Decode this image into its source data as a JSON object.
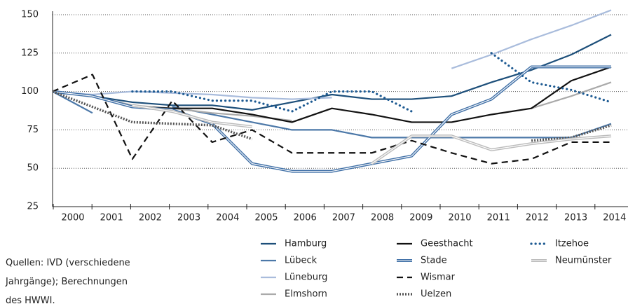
{
  "chart_data": {
    "type": "line",
    "categories": [
      "2000",
      "2001",
      "2002",
      "2003",
      "2004",
      "2005",
      "2006",
      "2007",
      "2008",
      "2009",
      "2010",
      "2011",
      "2012",
      "2013",
      "2014"
    ],
    "ylim": [
      25,
      150
    ],
    "yticks": [
      25,
      50,
      75,
      100,
      125,
      150
    ],
    "grid": true,
    "series": [
      {
        "name": "Hamburg",
        "color": "#1d4f7a",
        "style": "solid",
        "values": [
          100,
          97,
          93,
          91,
          91,
          88,
          93,
          98,
          95,
          95,
          97,
          106,
          114,
          124,
          137
        ]
      },
      {
        "name": "Lübeck",
        "color": "#4c78a8",
        "style": "solid",
        "values": [
          100,
          86,
          null,
          90,
          85,
          80,
          75,
          75,
          70,
          70,
          70,
          70,
          70,
          70,
          79
        ]
      },
      {
        "name": "Lüneburg",
        "color": "#a9bcdc",
        "style": "solid",
        "values": [
          100,
          98,
          100,
          99,
          98,
          96,
          95,
          96,
          null,
          null,
          115,
          124,
          134,
          143,
          153
        ]
      },
      {
        "name": "Elmshorn",
        "color": "#aaaaaa",
        "style": "solid",
        "values": [
          100,
          97,
          91,
          89,
          86,
          84,
          81,
          null,
          null,
          null,
          null,
          null,
          89,
          97,
          106
        ]
      },
      {
        "name": "Geesthacht",
        "color": "#111111",
        "style": "solid",
        "values": [
          100,
          97,
          90,
          89,
          89,
          85,
          80,
          89,
          85,
          80,
          80,
          85,
          89,
          107,
          116
        ]
      },
      {
        "name": "Stade",
        "color": "#3f6fa6",
        "style": "double",
        "values": [
          100,
          97,
          90,
          88,
          79,
          53,
          48,
          48,
          53,
          58,
          85,
          95,
          116,
          116,
          116
        ]
      },
      {
        "name": "Wismar",
        "color": "#111111",
        "style": "dashed",
        "values": [
          100,
          111,
          56,
          94,
          67,
          75,
          60,
          60,
          60,
          68,
          60,
          53,
          56,
          67,
          67
        ]
      },
      {
        "name": "Uelzen",
        "color": "#555555",
        "style": "pattern",
        "values": [
          100,
          90,
          80,
          79,
          78,
          69,
          null,
          null,
          null,
          null,
          null,
          null,
          68,
          70,
          78
        ]
      },
      {
        "name": "Itzehoe",
        "color": "#1d5a92",
        "style": "dotted",
        "values": [
          null,
          null,
          100,
          100,
          94,
          94,
          87,
          100,
          100,
          87,
          null,
          125,
          106,
          101,
          93
        ]
      },
      {
        "name": "Neumünster",
        "color": "#bbbbbb",
        "style": "double",
        "values": [
          null,
          null,
          91,
          87,
          80,
          77,
          null,
          null,
          53,
          71,
          71,
          62,
          66,
          69,
          71
        ]
      }
    ],
    "source": [
      "Quellen: IVD (verschiedene",
      "Jahrgänge); Berechnungen",
      "des HWWI."
    ]
  }
}
